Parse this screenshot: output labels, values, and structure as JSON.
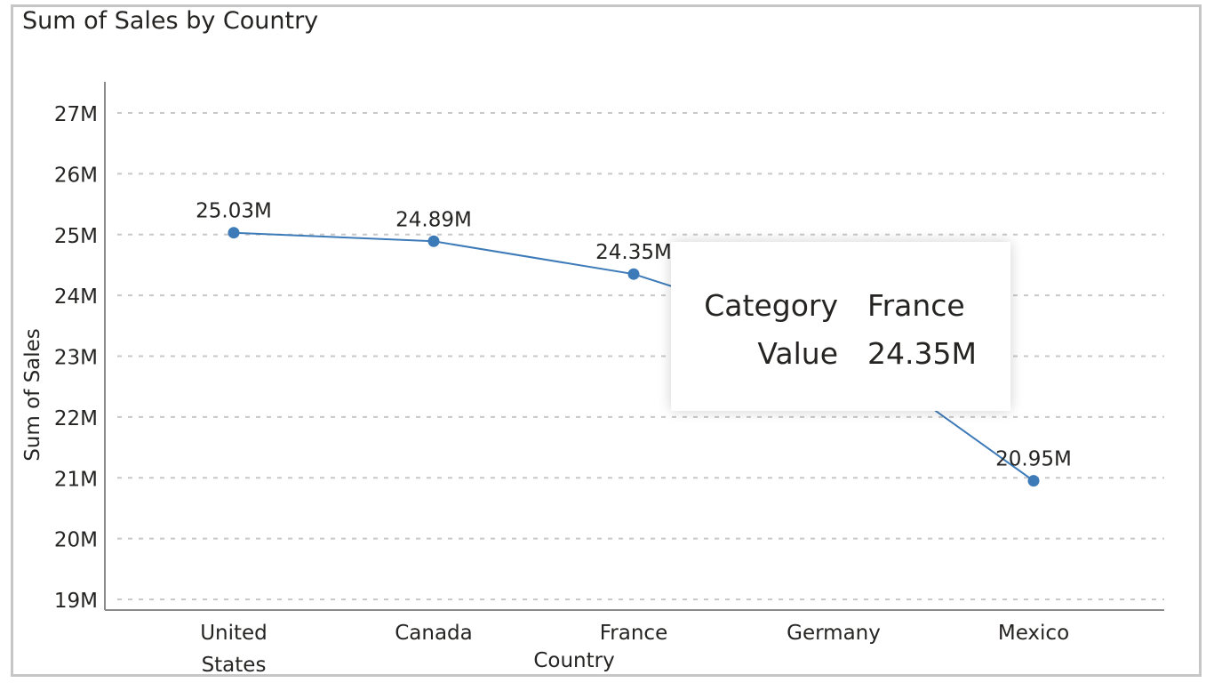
{
  "visual": {
    "title": "Sum of Sales by Country"
  },
  "chart_data": {
    "type": "line",
    "title": "Sum of Sales by Country",
    "xlabel": "Country",
    "ylabel": "Sum of Sales",
    "categories": [
      "United States",
      "Canada",
      "France",
      "Germany",
      "Mexico"
    ],
    "category_lines": [
      [
        "United",
        "States"
      ],
      [
        "Canada"
      ],
      [
        "France"
      ],
      [
        "Germany"
      ],
      [
        "Mexico"
      ]
    ],
    "series": [
      {
        "values": [
          25.03,
          24.89,
          24.35,
          23.3,
          20.95
        ],
        "data_labels": [
          "25.03M",
          "24.89M",
          "24.35M",
          "",
          "20.95M"
        ],
        "color": "#3d7ab8"
      }
    ],
    "ylim": [
      19,
      27
    ],
    "yticks": [
      19,
      20,
      21,
      22,
      23,
      24,
      25,
      26,
      27
    ],
    "ytick_labels": [
      "19M",
      "20M",
      "21M",
      "22M",
      "23M",
      "24M",
      "25M",
      "26M",
      "27M"
    ],
    "grid": true,
    "grid_style": "dotted",
    "legend": "none"
  },
  "tooltip": {
    "rows": [
      {
        "key": "Category",
        "value": "France"
      },
      {
        "key": "Value",
        "value": "24.35M"
      }
    ]
  },
  "colors": {
    "line": "#3d7ab8",
    "grid": "#c8c8c8",
    "axis": "#8a8a8a",
    "text": "#252423",
    "frame": "#c6c6c6"
  }
}
